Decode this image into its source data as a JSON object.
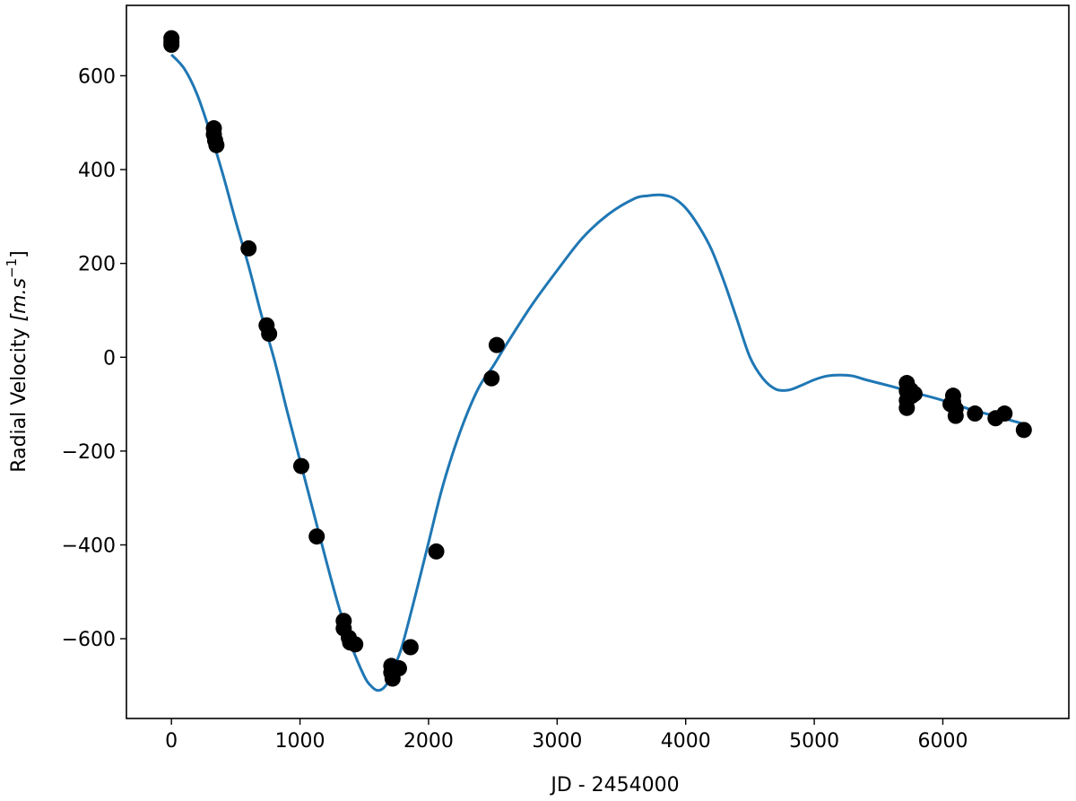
{
  "chart_data": {
    "type": "scatter",
    "title": "",
    "xlabel": "JD - 2454000",
    "ylabel_main": "Radial Velocity ",
    "ylabel_unit": "[m.s",
    "ylabel_exp": "−1",
    "ylabel_close": "]",
    "xlim": [
      -350,
      6980
    ],
    "ylim": [
      -770,
      750
    ],
    "grid": false,
    "legend": "none",
    "x_ticks": [
      0,
      1000,
      2000,
      3000,
      4000,
      5000,
      6000
    ],
    "x_tick_labels": [
      "0",
      "1000",
      "2000",
      "3000",
      "4000",
      "5000",
      "6000"
    ],
    "y_ticks": [
      600,
      400,
      200,
      0,
      -200,
      -400,
      -600
    ],
    "y_tick_labels": [
      "600",
      "400",
      "200",
      "0",
      "−200",
      "−400",
      "−600"
    ],
    "series": [
      {
        "kind": "model",
        "color": "#1f77b4",
        "x": [
          0,
          100,
          200,
          300,
          400,
          500,
          600,
          700,
          800,
          900,
          1000,
          1100,
          1200,
          1300,
          1400,
          1500,
          1550,
          1600,
          1650,
          1700,
          1750,
          1800,
          1900,
          2000,
          2100,
          2200,
          2300,
          2400,
          2500,
          2600,
          2800,
          3000,
          3200,
          3400,
          3600,
          3700,
          3800,
          3900,
          4000,
          4100,
          4200,
          4300,
          4400,
          4500,
          4600,
          4700,
          4800,
          4900,
          5000,
          5100,
          5200,
          5300,
          5400,
          5600,
          5800,
          6000,
          6200,
          6400,
          6600,
          6650
        ],
        "y": [
          645,
          615,
          560,
          480,
          390,
          290,
          195,
          90,
          -5,
          -115,
          -220,
          -325,
          -430,
          -530,
          -615,
          -680,
          -700,
          -710,
          -705,
          -685,
          -650,
          -610,
          -505,
          -395,
          -285,
          -195,
          -120,
          -60,
          -20,
          25,
          110,
          185,
          255,
          305,
          338,
          344,
          346,
          340,
          318,
          280,
          230,
          160,
          80,
          0,
          -45,
          -68,
          -70,
          -60,
          -48,
          -40,
          -38,
          -40,
          -48,
          -62,
          -77,
          -92,
          -110,
          -125,
          -140,
          -145
        ]
      },
      {
        "kind": "observations",
        "color": "#000000",
        "points": [
          [
            0,
            680
          ],
          [
            0,
            672
          ],
          [
            0,
            666
          ],
          [
            330,
            488
          ],
          [
            330,
            475
          ],
          [
            340,
            462
          ],
          [
            350,
            452
          ],
          [
            600,
            232
          ],
          [
            740,
            68
          ],
          [
            760,
            50
          ],
          [
            1010,
            -232
          ],
          [
            1130,
            -382
          ],
          [
            1340,
            -562
          ],
          [
            1340,
            -578
          ],
          [
            1380,
            -598
          ],
          [
            1390,
            -608
          ],
          [
            1430,
            -612
          ],
          [
            1710,
            -658
          ],
          [
            1710,
            -672
          ],
          [
            1720,
            -685
          ],
          [
            1770,
            -663
          ],
          [
            1860,
            -618
          ],
          [
            2060,
            -414
          ],
          [
            2490,
            -45
          ],
          [
            2530,
            26
          ],
          [
            5720,
            -55
          ],
          [
            5720,
            -72
          ],
          [
            5720,
            -92
          ],
          [
            5720,
            -108
          ],
          [
            5750,
            -70
          ],
          [
            5760,
            -82
          ],
          [
            5780,
            -78
          ],
          [
            6060,
            -100
          ],
          [
            6080,
            -82
          ],
          [
            6080,
            -95
          ],
          [
            6100,
            -110
          ],
          [
            6100,
            -125
          ],
          [
            6250,
            -120
          ],
          [
            6410,
            -130
          ],
          [
            6480,
            -120
          ],
          [
            6630,
            -155
          ]
        ]
      }
    ]
  }
}
